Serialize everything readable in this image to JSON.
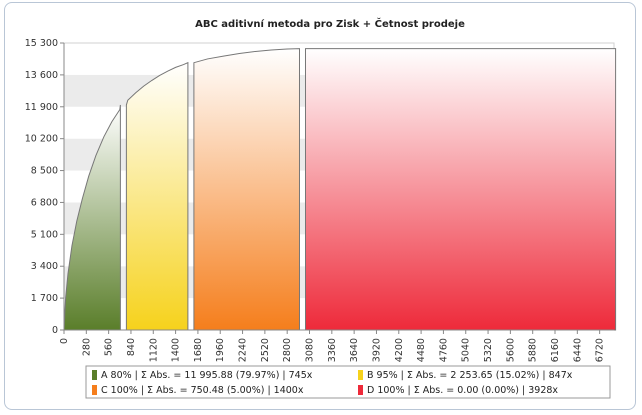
{
  "chart_data": {
    "type": "area",
    "title": "ABC aditivní metoda pro Zisk + Četnost prodeje",
    "xlabel": "",
    "ylabel": "",
    "xlim": [
      0,
      6900
    ],
    "ylim": [
      0,
      15300
    ],
    "yticks": [
      0,
      1700,
      3400,
      5100,
      6800,
      8500,
      10200,
      11900,
      13600,
      15300
    ],
    "yticklabels": [
      "0",
      "1 700",
      "3 400",
      "5 100",
      "6 800",
      "8 500",
      "10 200",
      "11 900",
      "13 600",
      "15 300"
    ],
    "xticks": [
      0,
      280,
      560,
      840,
      1120,
      1400,
      1680,
      1960,
      2240,
      2520,
      2800,
      3080,
      3360,
      3640,
      3920,
      4200,
      4480,
      4760,
      5040,
      5320,
      5600,
      5880,
      6160,
      6440,
      6720
    ],
    "xticklabels": [
      "0",
      "280",
      "560",
      "840",
      "1120",
      "1400",
      "1680",
      "1960",
      "2240",
      "2520",
      "2800",
      "3080",
      "3360",
      "3640",
      "3920",
      "4200",
      "4480",
      "4760",
      "5040",
      "5320",
      "5600",
      "5880",
      "6160",
      "6440",
      "6720"
    ],
    "grid": "horizontal bands",
    "legend_position": "bottom",
    "series": [
      {
        "name": "A 80%",
        "legend_text": "A 80%  | Σ Abs. = 11 995.88 (79.97%) | 745x",
        "color": "#5a7e2a",
        "x": [
          0,
          20,
          50,
          100,
          160,
          230,
          310,
          400,
          500,
          600,
          700,
          745
        ],
        "y": [
          0,
          1700,
          3000,
          4500,
          5800,
          7000,
          8200,
          9300,
          10300,
          11100,
          11750,
          11996
        ]
      },
      {
        "name": "B 95%",
        "legend_text": "B 95%  | Σ Abs. = 2 253.65 (15.02%) | 847x",
        "color": "#f6d21c",
        "x": [
          745,
          800,
          900,
          1000,
          1100,
          1200,
          1300,
          1400,
          1500,
          1592
        ],
        "y": [
          11996,
          12250,
          12650,
          13000,
          13300,
          13570,
          13800,
          14000,
          14150,
          14250
        ]
      },
      {
        "name": "C 100%",
        "legend_text": "C 100%  | Σ Abs. = 750.48 (5.00%) | 1400x",
        "color": "#f57e1c",
        "x": [
          1592,
          1800,
          2000,
          2200,
          2400,
          2600,
          2800,
          2992
        ],
        "y": [
          14250,
          14450,
          14600,
          14740,
          14850,
          14930,
          14980,
          15000
        ]
      },
      {
        "name": "D 100%",
        "legend_text": "D 100%  | Σ Abs. = 0.00 (0.00%) | 3928x",
        "color": "#ee2a3a",
        "x": [
          2992,
          6920
        ],
        "y": [
          15000,
          15000
        ]
      }
    ]
  }
}
